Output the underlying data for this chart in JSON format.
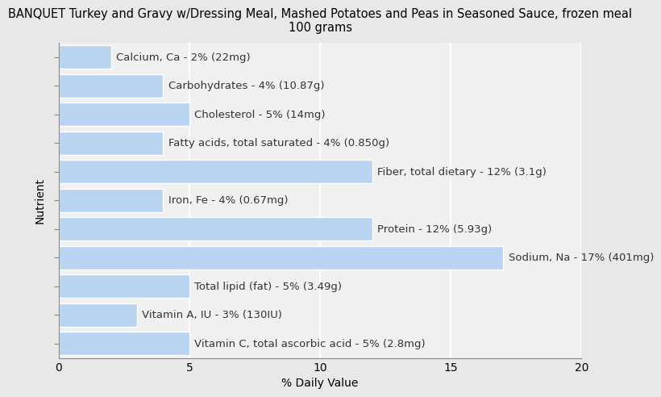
{
  "title": "BANQUET Turkey and Gravy w/Dressing Meal, Mashed Potatoes and Peas in Seasoned Sauce, frozen meal\n100 grams",
  "xlabel": "% Daily Value",
  "ylabel": "Nutrient",
  "background_color": "#e8e8e8",
  "plot_background_color": "#f0f0f0",
  "bar_color": "#b8d4f0",
  "bar_edge_color": "#ffffff",
  "xlim": [
    0,
    20
  ],
  "xticks": [
    0,
    5,
    10,
    15,
    20
  ],
  "nutrients": [
    "Calcium, Ca - 2% (22mg)",
    "Carbohydrates - 4% (10.87g)",
    "Cholesterol - 5% (14mg)",
    "Fatty acids, total saturated - 4% (0.850g)",
    "Fiber, total dietary - 12% (3.1g)",
    "Iron, Fe - 4% (0.67mg)",
    "Protein - 12% (5.93g)",
    "Sodium, Na - 17% (401mg)",
    "Total lipid (fat) - 5% (3.49g)",
    "Vitamin A, IU - 3% (130IU)",
    "Vitamin C, total ascorbic acid - 5% (2.8mg)"
  ],
  "values": [
    2,
    4,
    5,
    4,
    12,
    4,
    12,
    17,
    5,
    3,
    5
  ],
  "title_fontsize": 10.5,
  "label_fontsize": 10,
  "tick_fontsize": 10,
  "bar_label_fontsize": 9.5,
  "grid_color": "#ffffff",
  "text_color": "#333333",
  "bar_height": 0.82
}
